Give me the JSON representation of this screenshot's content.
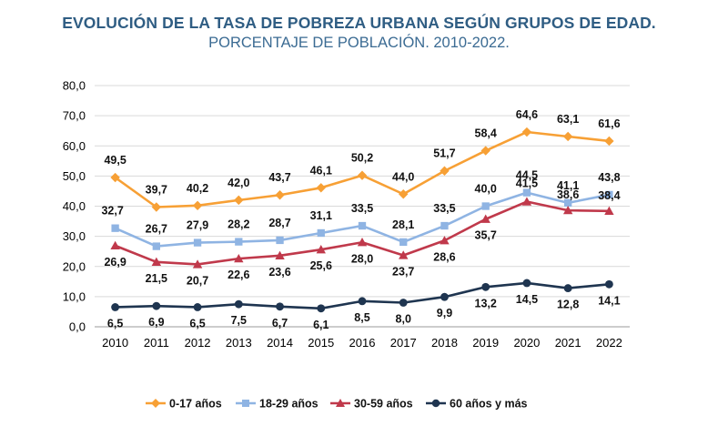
{
  "chart_data": {
    "type": "line",
    "title": "EVOLUCIÓN DE LA TASA DE POBREZA URBANA SEGÚN GRUPOS DE EDAD.",
    "subtitle": "PORCENTAJE DE POBLACIÓN. 2010-2022.",
    "xlabel": "",
    "ylabel": "",
    "ylim": [
      0,
      80
    ],
    "yticks": [
      "0,0",
      "10,0",
      "20,0",
      "30,0",
      "40,0",
      "50,0",
      "60,0",
      "70,0",
      "80,0"
    ],
    "categories": [
      "2010",
      "2011",
      "2012",
      "2013",
      "2014",
      "2015",
      "2016",
      "2017",
      "2018",
      "2019",
      "2020",
      "2021",
      "2022"
    ],
    "grid": true,
    "legend_position": "bottom",
    "series": [
      {
        "name": "0-17 años",
        "color": "#f7a035",
        "marker": "diamond",
        "values": [
          49.5,
          39.7,
          40.2,
          42.0,
          43.7,
          46.1,
          50.2,
          44.0,
          51.7,
          58.4,
          64.6,
          63.1,
          61.6
        ],
        "labels": [
          "49,5",
          "39,7",
          "40,2",
          "42,0",
          "43,7",
          "46,1",
          "50,2",
          "44,0",
          "51,7",
          "58,4",
          "64,6",
          "63,1",
          "61,6"
        ]
      },
      {
        "name": "18-29 años",
        "color": "#8fb4e3",
        "marker": "square",
        "values": [
          32.7,
          26.7,
          27.9,
          28.2,
          28.7,
          31.1,
          33.5,
          28.1,
          33.5,
          40.0,
          44.5,
          41.1,
          43.8
        ],
        "labels": [
          "32,7",
          "26,7",
          "27,9",
          "28,2",
          "28,7",
          "31,1",
          "33,5",
          "28,1",
          "33,5",
          "40,0",
          "44,5",
          "41,1",
          "43,8"
        ]
      },
      {
        "name": "30-59 años",
        "color": "#c0394b",
        "marker": "triangle",
        "values": [
          26.9,
          21.5,
          20.7,
          22.6,
          23.6,
          25.6,
          28.0,
          23.7,
          28.6,
          35.7,
          41.5,
          38.6,
          38.4
        ],
        "labels": [
          "26,9",
          "21,5",
          "20,7",
          "22,6",
          "23,6",
          "25,6",
          "28,0",
          "23,7",
          "28,6",
          "35,7",
          "41,5",
          "38,6",
          "38,4"
        ]
      },
      {
        "name": "60 años y más",
        "color": "#1f3550",
        "marker": "circle",
        "values": [
          6.5,
          6.9,
          6.5,
          7.5,
          6.7,
          6.1,
          8.5,
          8.0,
          9.9,
          13.2,
          14.5,
          12.8,
          14.1
        ],
        "labels": [
          "6,5",
          "6,9",
          "6,5",
          "7,5",
          "6,7",
          "6,1",
          "8,5",
          "8,0",
          "9,9",
          "13,2",
          "14,5",
          "12,8",
          "14,1"
        ]
      }
    ]
  }
}
